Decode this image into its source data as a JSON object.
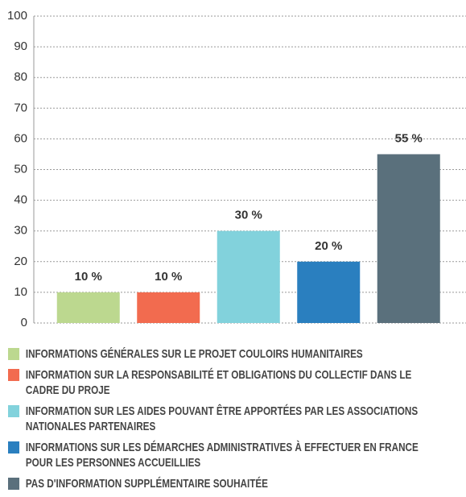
{
  "chart_data": {
    "type": "bar",
    "categories": [
      "INFORMATIONS GÉNÉRALES SUR LE PROJET COULOIRS HUMANITAIRES",
      "INFORMATION SUR LA RESPONSABILITÉ ET OBLIGATIONS DU COLLECTIF DANS LE CADRE DU PROJE",
      "INFORMATION SUR LES AIDES POUVANT ÊTRE APPORTÉES PAR LES ASSOCIATIONS NATIONALES PARTENAIRES",
      "INFORMATIONS SUR LES DÉMARCHES ADMINISTRATIVES À EFFECTUER EN FRANCE POUR LES PERSONNES ACCUEILLIES",
      "PAS D'INFORMATION SUPPLÉMENTAIRE SOUHAITÉE"
    ],
    "values": [
      10,
      10,
      30,
      20,
      55
    ],
    "value_labels": [
      "10 %",
      "10 %",
      "30 %",
      "20 %",
      "55 %"
    ],
    "colors": [
      "#bcd88f",
      "#f26b4f",
      "#82d2dc",
      "#2a7fbf",
      "#5a707c"
    ],
    "ylim": [
      0,
      100
    ],
    "yticks": [
      0,
      10,
      20,
      30,
      40,
      50,
      60,
      70,
      80,
      90,
      100
    ],
    "grid": true
  }
}
